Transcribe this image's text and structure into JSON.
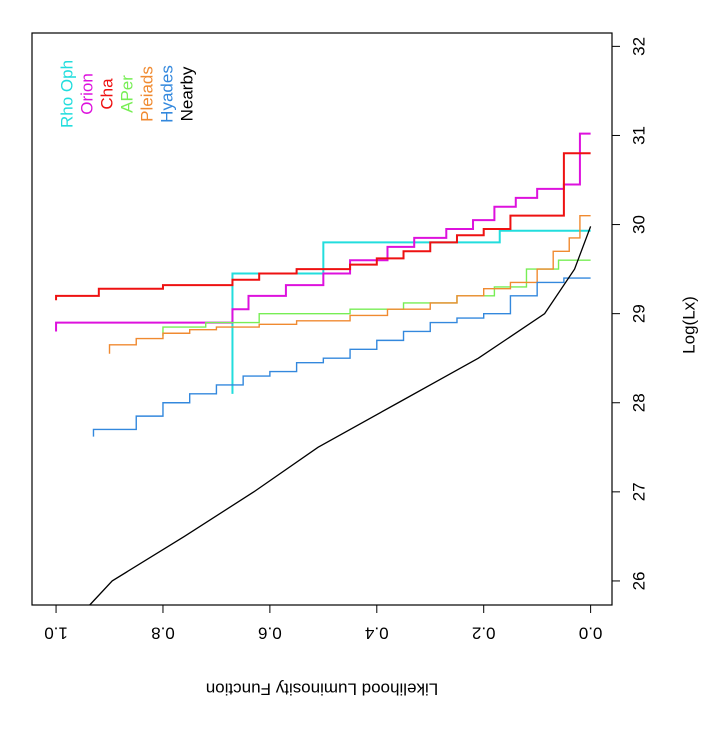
{
  "chart_data": {
    "type": "step",
    "x_label": "Log(Lx)",
    "y_label": "Likelihood Luminosity Function",
    "xlim": [
      25.73,
      32.15
    ],
    "ylim": [
      -0.04,
      1.045
    ],
    "xticks": [
      26,
      27,
      28,
      29,
      30,
      31,
      32
    ],
    "yticks": [
      {
        "value": 0,
        "label": "0.0"
      },
      0.2,
      0.4,
      0.6,
      0.8,
      {
        "value": 1,
        "label": "1.0"
      }
    ],
    "series": [
      {
        "name": "Rho Oph",
        "color": "#22dddd",
        "x": [
          28.1,
          29.45,
          29.8,
          29.93
        ],
        "values": [
          0.67,
          0.5,
          0.17,
          0.0
        ]
      },
      {
        "name": "Orion",
        "color": "#dd11dd",
        "x": [
          28.8,
          28.9,
          29.05,
          29.2,
          29.32,
          29.45,
          29.6,
          29.75,
          29.85,
          29.95,
          30.05,
          30.2,
          30.3,
          30.4,
          30.45,
          31.02
        ],
        "values": [
          1.0,
          0.67,
          0.64,
          0.57,
          0.5,
          0.45,
          0.38,
          0.33,
          0.27,
          0.22,
          0.18,
          0.14,
          0.1,
          0.05,
          0.02,
          0.0
        ]
      },
      {
        "name": "Cha",
        "color": "#ee1111",
        "x": [
          29.15,
          29.2,
          29.28,
          29.32,
          29.38,
          29.45,
          29.5,
          29.55,
          29.62,
          29.7,
          29.8,
          29.88,
          29.95,
          30.1,
          30.8
        ],
        "values": [
          1.0,
          0.92,
          0.8,
          0.67,
          0.62,
          0.55,
          0.45,
          0.4,
          0.35,
          0.3,
          0.25,
          0.2,
          0.15,
          0.05,
          0.0
        ]
      },
      {
        "name": "APer",
        "color": "#77ee55",
        "x": [
          28.75,
          28.85,
          28.9,
          29.0,
          29.05,
          29.12,
          29.2,
          29.3,
          29.5,
          29.6
        ],
        "values": [
          0.8,
          0.72,
          0.62,
          0.45,
          0.35,
          0.25,
          0.18,
          0.12,
          0.06,
          0.0
        ]
      },
      {
        "name": "Pleiads",
        "color": "#f08a30",
        "x": [
          28.55,
          28.65,
          28.72,
          28.78,
          28.82,
          28.85,
          28.88,
          28.92,
          28.98,
          29.05,
          29.12,
          29.2,
          29.28,
          29.35,
          29.5,
          29.7,
          29.85,
          30.1
        ],
        "values": [
          0.9,
          0.85,
          0.8,
          0.75,
          0.7,
          0.62,
          0.55,
          0.45,
          0.38,
          0.3,
          0.25,
          0.2,
          0.15,
          0.1,
          0.07,
          0.04,
          0.02,
          0.0
        ]
      },
      {
        "name": "Hyades",
        "color": "#3388dd",
        "x": [
          27.62,
          27.7,
          27.85,
          28.0,
          28.1,
          28.2,
          28.3,
          28.35,
          28.45,
          28.5,
          28.6,
          28.7,
          28.8,
          28.9,
          28.95,
          29.0,
          29.2,
          29.35,
          29.4
        ],
        "values": [
          0.93,
          0.85,
          0.8,
          0.75,
          0.7,
          0.65,
          0.6,
          0.55,
          0.5,
          0.45,
          0.4,
          0.35,
          0.3,
          0.25,
          0.2,
          0.15,
          0.1,
          0.05,
          0.0
        ]
      },
      {
        "name": "Nearby",
        "color": "#000000",
        "smooth": true,
        "x": [
          25.73,
          26.0,
          26.5,
          27.0,
          27.5,
          28.0,
          28.5,
          29.0,
          29.5,
          29.98
        ],
        "values": [
          0.937,
          0.895,
          0.76,
          0.63,
          0.51,
          0.36,
          0.21,
          0.086,
          0.03,
          0.0
        ]
      }
    ]
  }
}
